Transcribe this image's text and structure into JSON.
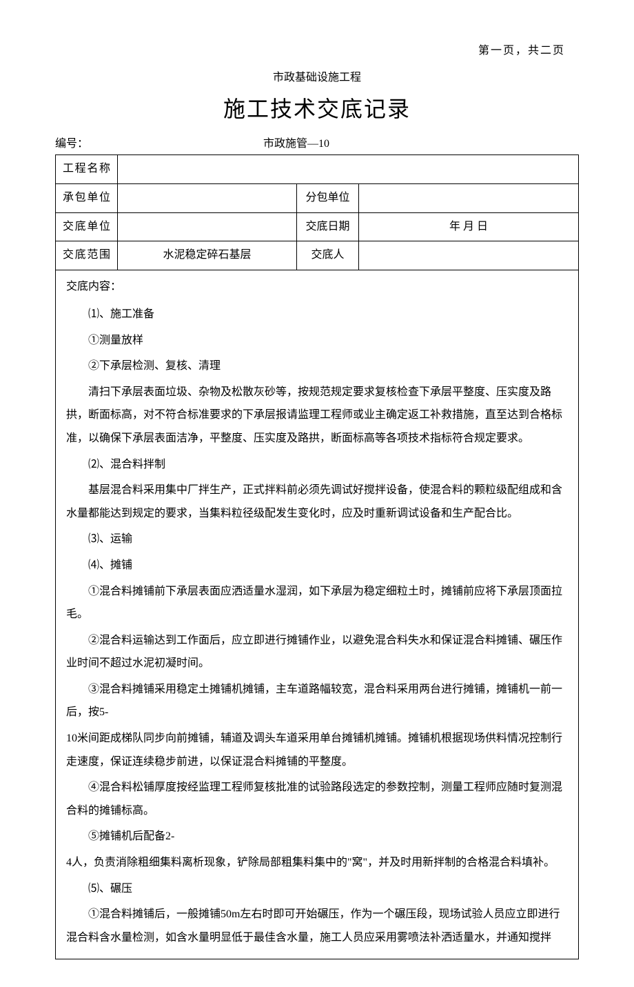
{
  "pageIndicator": "第一页，共二页",
  "subtitle": "市政基础设施工程",
  "title": "施工技术交底记录",
  "docNumberLabel": "编号：",
  "docNumberValue": "市政施管—10",
  "table": {
    "projectNameLabel": "工程名称",
    "projectNameValue": "",
    "contractorLabel": "承包单位",
    "contractorValue": "",
    "subcontractorLabel": "分包单位",
    "subcontractorValue": "",
    "briefingUnitLabel": "交底单位",
    "briefingUnitValue": "",
    "briefingDateLabel": "交底日期",
    "briefingDateValue": "年  月  日",
    "briefingScopeLabel": "交底范围",
    "briefingScopeValue": "水泥稳定碎石基层",
    "briefingPersonLabel": "交底人",
    "briefingPersonValue": ""
  },
  "contentHeader": "交底内容：",
  "paragraphs": [
    {
      "text": "⑴、施工准备",
      "indent": true
    },
    {
      "text": "①测量放样",
      "indent": true
    },
    {
      "text": "②下承层检测、复核、清理",
      "indent": true
    },
    {
      "text": "清扫下承层表面垃圾、杂物及松散灰砂等，按规范规定要求复核检查下承层平整度、压实度及路拱，断面标高，对不符合标准要求的下承层报请监理工程师或业主确定返工补救措施，直至达到合格标准，以确保下承层表面洁净，平整度、压实度及路拱，断面标高等各项技术指标符合规定要求。",
      "indent": true
    },
    {
      "text": "⑵、混合料拌制",
      "indent": true
    },
    {
      "text": "基层混合料采用集中厂拌生产，正式拌料前必须先调试好搅拌设备，使混合料的颗粒级配组成和含水量都能达到规定的要求，当集料粒径级配发生变化时，应及时重新调试设备和生产配合比。",
      "indent": true
    },
    {
      "text": "⑶、运输",
      "indent": true
    },
    {
      "text": "⑷、摊铺",
      "indent": true
    },
    {
      "text": "①混合料摊铺前下承层表面应洒适量水湿润，如下承层为稳定细粒土时，摊铺前应将下承层顶面拉毛。",
      "indent": true
    },
    {
      "text": "②混合料运输达到工作面后，应立即进行摊铺作业，以避免混合料失水和保证混合料摊铺、碾压作业时间不超过水泥初凝时间。",
      "indent": true
    },
    {
      "text": "③混合料摊铺采用稳定土摊铺机摊铺，主车道路幅较宽，混合料采用两台进行摊铺，摊铺机一前一后，按5-",
      "indent": true
    },
    {
      "text": "10米间距成梯队同步向前摊铺，辅道及调头车道采用单台摊铺机摊铺。摊铺机根据现场供料情况控制行走速度，保证连续稳步前进，以保证混合料摊铺的平整度。",
      "indent": false
    },
    {
      "text": "④混合料松铺厚度按经监理工程师复核批准的试验路段选定的参数控制，测量工程师应随时复测混合料的摊铺标高。",
      "indent": true
    },
    {
      "text": "⑤摊铺机后配备2-",
      "indent": true
    },
    {
      "text": "4人，负责消除粗细集料离析现象，铲除局部粗集料集中的\"窝\"，并及时用新拌制的合格混合料填补。",
      "indent": false
    },
    {
      "text": "⑸、碾压",
      "indent": true
    },
    {
      "text": "①混合料摊铺后，一般摊铺50m左右时即可开始碾压，作为一个碾压段，现场试验人员应立即进行混合料含水量检测，如含水量明显低于最佳含水量，施工人员应采用雾喷法补洒适量水，并通知搅拌",
      "indent": true
    }
  ]
}
